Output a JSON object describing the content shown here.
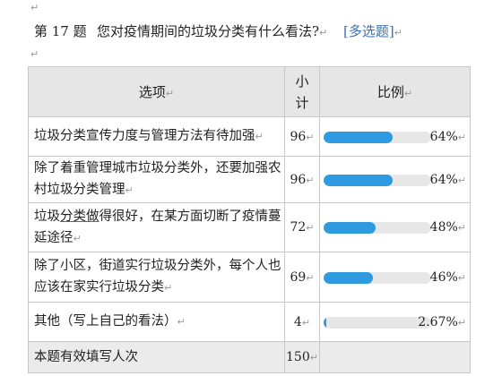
{
  "question": {
    "number": "第 17 题",
    "text": "您对疫情期间的垃圾分类有什么看法?",
    "type": "[多选题]"
  },
  "table": {
    "headers": {
      "option": "选项",
      "count": "小计",
      "ratio": "比例"
    },
    "rows": [
      {
        "option": "垃圾分类宣传力度与管理方法有待加强",
        "count": "96",
        "ratio": "64%",
        "ratio_value": 64
      },
      {
        "option": "除了着重管理城市垃圾分类外，还要加强农村垃圾分类管理",
        "count": "96",
        "ratio": "64%",
        "ratio_value": 64
      },
      {
        "option_pre": "垃圾",
        "option_link": "分类做",
        "option_post": "得很好，在某方面切断了疫情蔓延途径",
        "count": "72",
        "ratio": "48%",
        "ratio_value": 48
      },
      {
        "option": "除了小区，街道实行垃圾分类外，每个人也应该在家实行垃圾分类",
        "count": "69",
        "ratio": "46%",
        "ratio_value": 46
      },
      {
        "option": "其他（写上自己的看法）",
        "count": "4",
        "ratio": "2.67%",
        "ratio_value": 2.67
      }
    ],
    "footer": {
      "label": "本题有效填写人次",
      "count": "150"
    }
  },
  "colors": {
    "bar_fill": "#2f9ae0",
    "bar_track": "#e7e7e7",
    "header_bg": "#e6e6e6",
    "link": "#3b6fb6"
  },
  "marks": {
    "paragraph": "↵"
  }
}
